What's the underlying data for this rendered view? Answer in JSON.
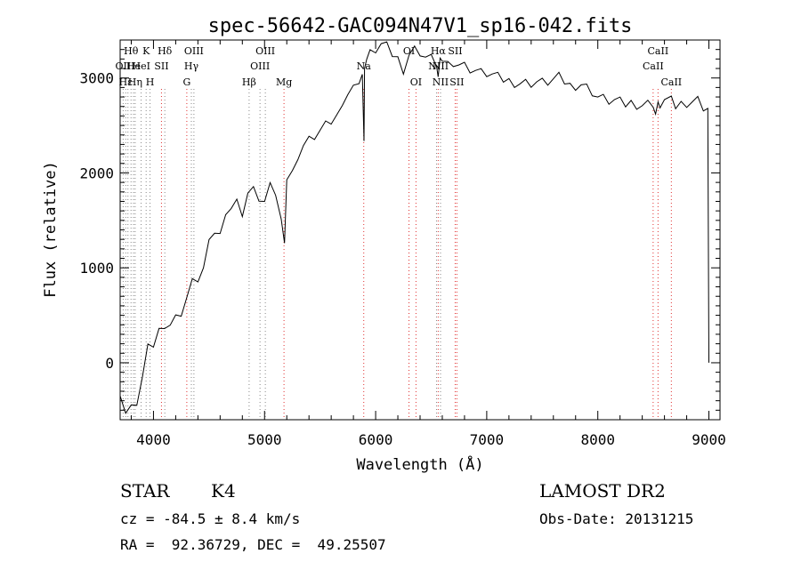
{
  "chart_data": {
    "type": "line",
    "title": "spec-56642-GAC094N47V1_sp16-042.fits",
    "xlabel": "Wavelength (Å)",
    "ylabel": "Flux (relative)",
    "xlim": [
      3700,
      9100
    ],
    "ylim": [
      -600,
      3400
    ],
    "x_ticks": [
      4000,
      5000,
      6000,
      7000,
      8000,
      9000
    ],
    "y_ticks": [
      0,
      1000,
      2000,
      3000
    ],
    "x_tick_labels": [
      "4000",
      "5000",
      "6000",
      "7000",
      "8000",
      "9000"
    ],
    "y_tick_labels": [
      "0",
      "1000",
      "2000",
      "3000"
    ],
    "grid": false,
    "series": [
      {
        "color": "#000000",
        "x": [
          3700,
          3750,
          3800,
          3850,
          3900,
          3950,
          4000,
          4050,
          4100,
          4150,
          4200,
          4250,
          4300,
          4350,
          4400,
          4450,
          4500,
          4550,
          4600,
          4650,
          4700,
          4750,
          4800,
          4850,
          4900,
          4950,
          5000,
          5050,
          5100,
          5150,
          5180,
          5200,
          5250,
          5300,
          5350,
          5400,
          5450,
          5500,
          5550,
          5600,
          5650,
          5700,
          5750,
          5800,
          5850,
          5880,
          5895,
          5900,
          5920,
          5950,
          6000,
          6050,
          6100,
          6150,
          6200,
          6250,
          6300,
          6350,
          6400,
          6450,
          6500,
          6550,
          6563,
          6580,
          6600,
          6650,
          6700,
          6750,
          6800,
          6850,
          6900,
          6950,
          7000,
          7050,
          7100,
          7150,
          7200,
          7250,
          7300,
          7350,
          7400,
          7450,
          7500,
          7550,
          7600,
          7650,
          7700,
          7750,
          7800,
          7850,
          7900,
          7950,
          8000,
          8050,
          8100,
          8150,
          8200,
          8250,
          8300,
          8350,
          8400,
          8450,
          8498,
          8520,
          8542,
          8560,
          8600,
          8662,
          8700,
          8750,
          8800,
          8850,
          8900,
          8950,
          8990,
          9000
        ],
        "y": [
          -350,
          -520,
          -480,
          -400,
          -150,
          150,
          200,
          350,
          300,
          420,
          480,
          550,
          700,
          850,
          900,
          1000,
          1250,
          1400,
          1350,
          1500,
          1650,
          1700,
          1600,
          1800,
          1820,
          1750,
          1700,
          1850,
          1800,
          1500,
          1200,
          1950,
          2000,
          2200,
          2300,
          2350,
          2400,
          2450,
          2500,
          2550,
          2600,
          2650,
          2850,
          2900,
          3000,
          3050,
          2300,
          3150,
          3200,
          3250,
          3300,
          3350,
          3320,
          3250,
          3200,
          3100,
          3250,
          3300,
          3280,
          3220,
          3200,
          3150,
          3000,
          3150,
          3200,
          3150,
          3180,
          3150,
          3130,
          3100,
          3080,
          3050,
          3050,
          3030,
          3000,
          2980,
          2970,
          2960,
          2950,
          2950,
          2950,
          2960,
          2950,
          2960,
          2980,
          3000,
          2960,
          2920,
          2930,
          2940,
          2900,
          2860,
          2800,
          2780,
          2760,
          2760,
          2740,
          2720,
          2740,
          2730,
          2720,
          2730,
          2740,
          2620,
          2700,
          2720,
          2760,
          2750,
          2700,
          2730,
          2750,
          2760,
          2770,
          2700,
          2680,
          0
        ]
      }
    ],
    "line_labels": {
      "top_row": [
        {
          "text": "Hθ",
          "x": 3798
        },
        {
          "text": "K",
          "x": 3934
        },
        {
          "text": "Hδ",
          "x": 4102
        },
        {
          "text": "OIII",
          "x": 4364
        },
        {
          "text": "OIII",
          "x": 5007
        },
        {
          "text": "OI",
          "x": 6300
        },
        {
          "text": "Hα",
          "x": 6563
        },
        {
          "text": "SII",
          "x": 6716
        },
        {
          "text": "CaII",
          "x": 8542
        }
      ],
      "mid_row": [
        {
          "text": "OII",
          "x": 3727
        },
        {
          "text": "He",
          "x": 3820
        },
        {
          "text": "HeI",
          "x": 3890
        },
        {
          "text": "SII",
          "x": 4072
        },
        {
          "text": "Hγ",
          "x": 4341
        },
        {
          "text": "OIII",
          "x": 4959
        },
        {
          "text": "Na",
          "x": 5893
        },
        {
          "text": "NII",
          "x": 6548
        },
        {
          "text": "NII",
          "x": 6584
        },
        {
          "text": "CaII",
          "x": 8498
        }
      ],
      "low_row": [
        {
          "text": "Hε",
          "x": 3750
        },
        {
          "text": "Hη",
          "x": 3835
        },
        {
          "text": "H",
          "x": 3969
        },
        {
          "text": "G",
          "x": 4300
        },
        {
          "text": "Hβ",
          "x": 4861
        },
        {
          "text": "Mg",
          "x": 5175
        },
        {
          "text": "OI",
          "x": 6363
        },
        {
          "text": "NII",
          "x": 6584
        },
        {
          "text": "SII",
          "x": 6731
        },
        {
          "text": "CaII",
          "x": 8662
        }
      ],
      "gray_lines": [
        3727,
        3750,
        3770,
        3798,
        3820,
        3835,
        3889,
        3934,
        3969,
        4102,
        4341,
        4364,
        4861,
        4959,
        5007,
        6548,
        6584
      ],
      "red_lines": [
        4072,
        4300,
        5175,
        5893,
        6300,
        6363,
        6563,
        6716,
        6731,
        8498,
        8542,
        8662
      ]
    }
  },
  "info": {
    "class_label": "STAR",
    "subclass": "K4",
    "survey": "LAMOST DR2",
    "cz_line": "cz = -84.5 ± 8.4 km/s",
    "obs_date_line": "Obs-Date: 20131215",
    "radec_line": "RA =  92.36729, DEC =  49.25507"
  }
}
